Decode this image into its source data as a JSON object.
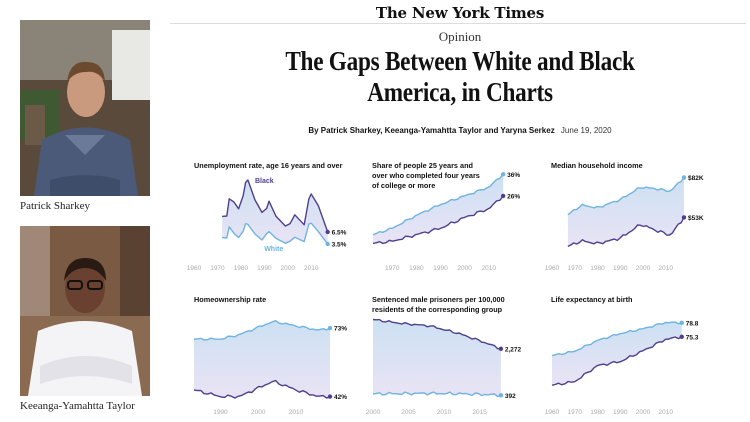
{
  "masthead": "The New York Times",
  "section": "Opinion",
  "headline": {
    "line1": "The Gaps Between White and Black",
    "line2": "America, in Charts"
  },
  "byline": {
    "authors": "By Patrick Sharkey, Keeanga-Yamahtta Taylor and Yaryna Serkez",
    "date": "June 19, 2020"
  },
  "authors": [
    {
      "name": "Patrick Sharkey",
      "photo": "author-photo"
    },
    {
      "name": "Keeanga-Yamahtta Taylor",
      "photo": "author-photo"
    }
  ],
  "colors": {
    "black_series": "#4f3f8f",
    "white_series": "#6fb3e0",
    "fill_top": "#c9dff2",
    "fill_bottom": "#e8e2f4",
    "axis_text": "#aaaaaa"
  },
  "chart_data": [
    {
      "type": "line",
      "title": "Unemployment rate, age 16 years and over",
      "x": [
        1972,
        1974,
        1975,
        1977,
        1979,
        1981,
        1982,
        1983,
        1986,
        1989,
        1991,
        1992,
        1995,
        1999,
        2001,
        2003,
        2007,
        2009,
        2010,
        2013,
        2017
      ],
      "series": [
        {
          "name": "Black",
          "values": [
            10.4,
            10.5,
            14.8,
            14.0,
            12.3,
            15.6,
            18.9,
            19.5,
            14.5,
            11.4,
            12.4,
            14.2,
            10.4,
            8.0,
            8.6,
            10.8,
            8.3,
            14.8,
            16.0,
            13.1,
            6.5
          ]
        },
        {
          "name": "White",
          "values": [
            5.1,
            5.0,
            7.8,
            6.2,
            5.1,
            6.7,
            8.6,
            8.4,
            6.0,
            4.5,
            6.1,
            6.6,
            4.9,
            3.7,
            4.2,
            5.2,
            4.1,
            8.5,
            8.7,
            6.6,
            3.5
          ]
        }
      ],
      "end_labels": [
        "6.5%",
        "3.5%"
      ],
      "series_labels": [
        "Black",
        "White"
      ],
      "xticks": [
        "1960",
        "1970",
        "1980",
        "1990",
        "2000",
        "2010"
      ]
    },
    {
      "type": "area",
      "title": "Share of people 25 years and over who completed four years of college or more",
      "x": [
        1962,
        1970,
        1980,
        1990,
        2000,
        2010,
        2016
      ],
      "series": [
        {
          "name": "White",
          "values": [
            8,
            11,
            17,
            22,
            26,
            30,
            36
          ]
        },
        {
          "name": "Black",
          "values": [
            4,
            5,
            8,
            11,
            16,
            20,
            26
          ]
        }
      ],
      "end_labels": [
        "36%",
        "26%"
      ],
      "xticks": [
        "1970",
        "1980",
        "1990",
        "2000",
        "2010"
      ]
    },
    {
      "type": "area",
      "title": "Median household income",
      "x": [
        1967,
        1973,
        1980,
        1990,
        1999,
        2005,
        2012,
        2018
      ],
      "series": [
        {
          "name": "White",
          "values": [
            55,
            62,
            60,
            66,
            75,
            74,
            72,
            82
          ]
        },
        {
          "name": "Black",
          "values": [
            32,
            36,
            34,
            38,
            48,
            44,
            40,
            53
          ]
        }
      ],
      "end_labels": [
        "$82K",
        "$53K"
      ],
      "xticks": [
        "1960",
        "1970",
        "1980",
        "1990",
        "2000",
        "2010"
      ]
    },
    {
      "type": "area",
      "title": "Homeownership rate",
      "x": [
        1983,
        1990,
        1995,
        2004,
        2010,
        2016,
        2019
      ],
      "series": [
        {
          "name": "White",
          "values": [
            68,
            68,
            70,
            76,
            74,
            72,
            73
          ]
        },
        {
          "name": "Black",
          "values": [
            45,
            42,
            42,
            49,
            45,
            42,
            42
          ]
        }
      ],
      "end_labels": [
        "73%",
        "42%"
      ],
      "xticks": [
        "1990",
        "2000",
        "2010"
      ]
    },
    {
      "type": "area",
      "title": "Sentenced male prisoners per 100,000 residents of the corresponding group",
      "x": [
        2000,
        2004,
        2008,
        2012,
        2016,
        2018
      ],
      "series": [
        {
          "name": "Black",
          "values": [
            3457,
            3300,
            3200,
            2900,
            2500,
            2272
          ]
        },
        {
          "name": "White",
          "values": [
            449,
            460,
            470,
            455,
            420,
            392
          ]
        }
      ],
      "end_labels": [
        "2,272",
        "392"
      ],
      "xticks": [
        "2000",
        "2005",
        "2010",
        "2015"
      ]
    },
    {
      "type": "area",
      "title": "Life expectancy at birth",
      "x": [
        1960,
        1970,
        1980,
        1990,
        2000,
        2010,
        2017
      ],
      "series": [
        {
          "name": "White",
          "values": [
            70.6,
            71.7,
            74.4,
            76.1,
            77.3,
            78.9,
            78.8
          ]
        },
        {
          "name": "Black",
          "values": [
            63.2,
            64.1,
            68.1,
            69.1,
            71.8,
            74.7,
            75.3
          ]
        }
      ],
      "end_labels": [
        "78.8",
        "75.3"
      ],
      "xticks": [
        "1960",
        "1970",
        "1980",
        "1990",
        "2000",
        "2010"
      ]
    }
  ]
}
